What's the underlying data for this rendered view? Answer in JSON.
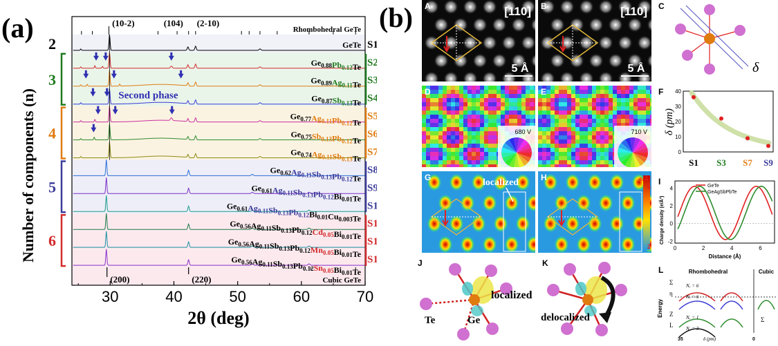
{
  "panel_a": {
    "label": "(a)",
    "ylabel": "Number of components (n)",
    "xlabel": "2θ (deg)",
    "x_ticks": [
      "30",
      "40",
      "50",
      "60",
      "70"
    ],
    "top_ref_label": "Rhombohedral GeTe",
    "bottom_ref_label": "Cubic GeTe",
    "peaks_top": [
      "(10-2)",
      "(104)",
      "(2-10)"
    ],
    "peaks_bottom": [
      "(200)",
      "(220)"
    ],
    "second_phase": "Second phase",
    "groups": [
      {
        "n": "2",
        "color": "#000000"
      },
      {
        "n": "3",
        "color": "#1e7a1e"
      },
      {
        "n": "4",
        "color": "#e07b10"
      },
      {
        "n": "5",
        "color": "#3b3b9a"
      },
      {
        "n": "6",
        "color": "#d42a2a"
      }
    ],
    "samples": [
      {
        "id": "S1",
        "id_color": "#000000",
        "line": "#000000",
        "bg": "#f0f2f8",
        "formula": [
          [
            "GeTe",
            "",
            "#000000"
          ]
        ]
      },
      {
        "id": "S2",
        "id_color": "#1e7a1e",
        "line": "#d42a2a",
        "bg": "#eaf5ea",
        "formula": [
          [
            "Ge",
            "0.88",
            "#000000"
          ],
          [
            "Pb",
            "0.12",
            "#1e7a1e"
          ],
          [
            "Te",
            "",
            "#000000"
          ]
        ]
      },
      {
        "id": "S3",
        "id_color": "#1e7a1e",
        "line": "#e07b10",
        "bg": "#eaf5ea",
        "formula": [
          [
            "Ge",
            "0.89",
            "#000000"
          ],
          [
            "Ag",
            "0.11",
            "#1e7a1e"
          ],
          [
            "Te",
            "",
            "#000000"
          ]
        ]
      },
      {
        "id": "S4",
        "id_color": "#1e7a1e",
        "line": "#3b3bd4",
        "bg": "#eaf5ea",
        "formula": [
          [
            "Ge",
            "0.87",
            "#000000"
          ],
          [
            "Sb",
            "0.13",
            "#1e7a1e"
          ],
          [
            "Te",
            "",
            "#000000"
          ]
        ]
      },
      {
        "id": "S5",
        "id_color": "#e07b10",
        "line": "#c92fa0",
        "bg": "#fbf3e2",
        "formula": [
          [
            "Ge",
            "0.77",
            "#000000"
          ],
          [
            "Ag",
            "0.11",
            "#e07b10"
          ],
          [
            "Pb",
            "0.12",
            "#e07b10"
          ],
          [
            "Te",
            "",
            "#000000"
          ]
        ]
      },
      {
        "id": "S6",
        "id_color": "#e07b10",
        "line": "#2e8b2e",
        "bg": "#fbf3e2",
        "formula": [
          [
            "Ge",
            "0.75",
            "#000000"
          ],
          [
            "Sb",
            "0.13",
            "#e07b10"
          ],
          [
            "Pb",
            "0.12",
            "#e07b10"
          ],
          [
            "Te",
            "",
            "#000000"
          ]
        ]
      },
      {
        "id": "S7",
        "id_color": "#e07b10",
        "line": "#8a8a12",
        "bg": "#fbf3e2",
        "formula": [
          [
            "Ge",
            "0.74",
            "#000000"
          ],
          [
            "Ag",
            "0.11",
            "#e07b10"
          ],
          [
            "Sb",
            "0.13",
            "#e07b10"
          ],
          [
            "Te",
            "",
            "#000000"
          ]
        ]
      },
      {
        "id": "S8",
        "id_color": "#3b3b9a",
        "line": "#2a6fd6",
        "bg": "#eeeef8",
        "formula": [
          [
            "Ge",
            "0.62",
            "#000000"
          ],
          [
            "Ag",
            "0.11",
            "#3b3b9a"
          ],
          [
            "Sb",
            "0.13",
            "#3b3b9a"
          ],
          [
            "Pb",
            "0.12",
            "#3b3b9a"
          ],
          [
            "Te",
            "",
            "#000000"
          ]
        ]
      },
      {
        "id": "S9",
        "id_color": "#3b3b9a",
        "line": "#7a2fc9",
        "bg": "#eeeef8",
        "formula": [
          [
            "Ge",
            "0.61",
            "#000000"
          ],
          [
            "Ag",
            "0.11",
            "#3b3b9a"
          ],
          [
            "Sb",
            "0.13",
            "#3b3b9a"
          ],
          [
            "Pb",
            "0.12",
            "#3b3b9a"
          ],
          [
            "Bi",
            "0.01",
            "#000000"
          ],
          [
            "Te",
            "",
            "#000000"
          ]
        ]
      },
      {
        "id": "S10",
        "id_color": "#3b3b9a",
        "line": "#1a9a8a",
        "bg": "#eeeef8",
        "formula": [
          [
            "Ge",
            "0.61",
            "#000000"
          ],
          [
            "Ag",
            "0.11",
            "#3b3b9a"
          ],
          [
            "Sb",
            "0.13",
            "#3b3b9a"
          ],
          [
            "Pb",
            "0.12",
            "#3b3b9a"
          ],
          [
            "Bi",
            "0.01",
            "#000000"
          ],
          [
            "Cu",
            "0.003",
            "#000000"
          ],
          [
            "Te",
            "",
            "#000000"
          ]
        ]
      },
      {
        "id": "S11",
        "id_color": "#d42a2a",
        "line": "#1e7a4a",
        "bg": "#fbe9ee",
        "formula": [
          [
            "Ge",
            "0.56",
            "#000000"
          ],
          [
            "Ag",
            "0.11",
            "#000000"
          ],
          [
            "Sb",
            "0.13",
            "#000000"
          ],
          [
            "Pb",
            "0.12",
            "#000000"
          ],
          [
            "Cd",
            "0.05",
            "#d42a2a"
          ],
          [
            "Bi",
            "0.01",
            "#000000"
          ],
          [
            "Te",
            "",
            "#000000"
          ]
        ]
      },
      {
        "id": "S12",
        "id_color": "#d42a2a",
        "line": "#1a8fa0",
        "bg": "#fbe9ee",
        "formula": [
          [
            "Ge",
            "0.56",
            "#000000"
          ],
          [
            "Ag",
            "0.11",
            "#000000"
          ],
          [
            "Sb",
            "0.13",
            "#000000"
          ],
          [
            "Pb",
            "0.12",
            "#000000"
          ],
          [
            "Mn",
            "0.05",
            "#d42a2a"
          ],
          [
            "Bi",
            "0.01",
            "#000000"
          ],
          [
            "Te",
            "",
            "#000000"
          ]
        ]
      },
      {
        "id": "S13",
        "id_color": "#d42a2a",
        "line": "#8a2fc9",
        "bg": "#fbe9ee",
        "formula": [
          [
            "Ge",
            "0.56",
            "#000000"
          ],
          [
            "Ag",
            "0.11",
            "#000000"
          ],
          [
            "Sb",
            "0.13",
            "#000000"
          ],
          [
            "Pb",
            "0.12",
            "#000000"
          ],
          [
            "Sn",
            "0.05",
            "#d42a2a"
          ],
          [
            "Bi",
            "0.01",
            "#000000"
          ],
          [
            "Te",
            "",
            "#000000"
          ]
        ]
      }
    ]
  },
  "panel_b": {
    "label": "(b)",
    "tile_A": {
      "letter": "A",
      "zone": "[110]",
      "scale": "5 Å"
    },
    "tile_B": {
      "letter": "B",
      "zone": "[110]",
      "scale": "5 Å"
    },
    "tile_C": {
      "letter": "C",
      "delta": "δ"
    },
    "tile_D": {
      "letter": "D",
      "voltage": "680 V"
    },
    "tile_E": {
      "letter": "E",
      "voltage": "710 V"
    },
    "tile_F": {
      "letter": "F",
      "ylabel": "δ (pm)",
      "yticks": [
        "40",
        "30",
        "20",
        "10",
        "0"
      ],
      "samples": [
        "S1",
        "S3",
        "S7",
        "S9"
      ]
    },
    "tile_G": {
      "letter": "G",
      "annotation": "localized",
      "unit": "e/Å²",
      "cbar_top": "6",
      "cbar_bottom": "2"
    },
    "tile_H": {
      "letter": "H"
    },
    "tile_I": {
      "letter": "I",
      "ylabel": "Charge density (e/Å³)",
      "xlabel": "Distance (Å)",
      "legend": [
        "GeTe",
        "GeAgSbPbTe"
      ],
      "yticks": [
        "4",
        "2",
        "0",
        "-2"
      ],
      "xticks": [
        "0",
        "2",
        "4",
        "6"
      ]
    },
    "tile_J": {
      "letter": "J",
      "annotation": "localized",
      "te_label": "Te",
      "ge_label": "Ge"
    },
    "tile_K": {
      "letter": "K",
      "annotation": "delocalized"
    },
    "tile_L": {
      "letter": "L",
      "title_left": "Rhombohedral",
      "title_right": "Cubic",
      "ylabel": "Energy",
      "labels_left": [
        "Σ",
        "η",
        "Z",
        "L"
      ],
      "nv": [
        "Nᵥ = 6",
        "Nᵥ = 6",
        "Nᵥ = 1",
        "Nᵥ = 3"
      ],
      "right_label": "Σ",
      "x_left": "35",
      "x_mid": "δ (pm)",
      "x_right": "0"
    }
  }
}
